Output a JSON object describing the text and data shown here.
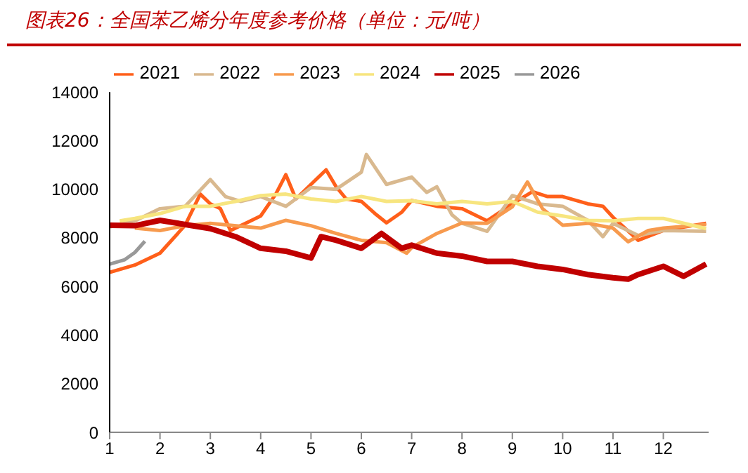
{
  "chart_data": {
    "type": "line",
    "title": "图表26：全国苯乙烯分年度参考价格（单位：元/吨）",
    "xlim": [
      1,
      12.9
    ],
    "xticks": [
      1,
      2,
      3,
      4,
      5,
      6,
      7,
      8,
      9,
      10,
      11,
      12
    ],
    "ylim": [
      0,
      14000
    ],
    "yticks": [
      0,
      2000,
      4000,
      6000,
      8000,
      10000,
      12000,
      14000
    ],
    "legend": "top",
    "marker": "none",
    "line_style": "solid",
    "series": [
      {
        "name": "2021",
        "color": "#ff5f1a",
        "x": [
          1,
          1.5,
          2,
          2.5,
          2.8,
          3,
          3.2,
          3.4,
          3.8,
          4,
          4.3,
          4.5,
          4.7,
          5,
          5.3,
          5.5,
          5.7,
          6,
          6.3,
          6.5,
          6.8,
          7,
          7.5,
          8,
          8.5,
          9,
          9.4,
          9.7,
          10,
          10.5,
          10.8,
          11,
          11.5,
          12,
          12.85
        ],
        "values": [
          6580,
          6880,
          7370,
          8520,
          9800,
          9400,
          9200,
          8300,
          8700,
          8900,
          9800,
          10600,
          9600,
          10200,
          10800,
          10100,
          9600,
          9500,
          8950,
          8620,
          9050,
          9540,
          9300,
          9200,
          8700,
          9400,
          9900,
          9700,
          9700,
          9400,
          9300,
          8850,
          7900,
          8300,
          8600
        ]
      },
      {
        "name": "2022",
        "color": "#d9b98f",
        "x": [
          1,
          1.5,
          2,
          2.5,
          3,
          3.3,
          3.6,
          4,
          4.5,
          5,
          5.5,
          6,
          6.1,
          6.5,
          7,
          7.3,
          7.5,
          7.8,
          8,
          8.5,
          9,
          9.5,
          10,
          10.5,
          10.8,
          11,
          11.5,
          12,
          12.85
        ],
        "values": [
          8450,
          8700,
          9200,
          9300,
          10400,
          9700,
          9500,
          9700,
          9300,
          10070,
          10000,
          10700,
          11430,
          10200,
          10500,
          9870,
          10100,
          8950,
          8600,
          8270,
          9740,
          9400,
          9300,
          8720,
          8050,
          8600,
          8100,
          8300,
          8270
        ]
      },
      {
        "name": "2023",
        "color": "#f79a4e",
        "x": [
          1.5,
          2,
          2.5,
          3,
          4,
          4.5,
          5,
          5.5,
          6,
          6.5,
          6.9,
          7,
          7.5,
          8,
          8.5,
          9,
          9.3,
          9.6,
          10,
          10.5,
          11,
          11.3,
          11.7,
          12,
          12.85
        ],
        "values": [
          8400,
          8300,
          8500,
          8600,
          8400,
          8720,
          8500,
          8180,
          7900,
          7800,
          7370,
          7600,
          8180,
          8610,
          8600,
          9280,
          10300,
          9200,
          8520,
          8600,
          8400,
          7840,
          8300,
          8400,
          8550
        ]
      },
      {
        "name": "2024",
        "color": "#f7e57f",
        "x": [
          1.2,
          1.5,
          2,
          2.5,
          3,
          3.5,
          4,
          4.5,
          5,
          5.5,
          6,
          6.5,
          7,
          7.5,
          8,
          8.5,
          9,
          9.5,
          10,
          10.5,
          11,
          11.5,
          12,
          12.85
        ],
        "values": [
          8700,
          8800,
          9000,
          9300,
          9300,
          9500,
          9740,
          9800,
          9600,
          9500,
          9700,
          9500,
          9530,
          9400,
          9500,
          9400,
          9500,
          9060,
          8900,
          8720,
          8700,
          8800,
          8800,
          8380
        ]
      },
      {
        "name": "2025",
        "color": "#c00000",
        "x": [
          1,
          1.5,
          2,
          3,
          3.5,
          4,
          4.5,
          5,
          5.2,
          5.5,
          6,
          6.4,
          6.8,
          7,
          7.5,
          8,
          8.5,
          9,
          9.5,
          10,
          10.5,
          11,
          11.3,
          11.5,
          12,
          12.4,
          12.85
        ],
        "values": [
          8520,
          8500,
          8720,
          8380,
          8050,
          7570,
          7450,
          7170,
          8050,
          7900,
          7570,
          8180,
          7570,
          7700,
          7370,
          7250,
          7030,
          7030,
          6830,
          6700,
          6490,
          6360,
          6300,
          6490,
          6830,
          6420,
          6920
        ]
      },
      {
        "name": "2026",
        "color": "#999999",
        "x": [
          1,
          1.3,
          1.5,
          1.7
        ],
        "values": [
          6920,
          7100,
          7400,
          7860
        ]
      }
    ]
  }
}
